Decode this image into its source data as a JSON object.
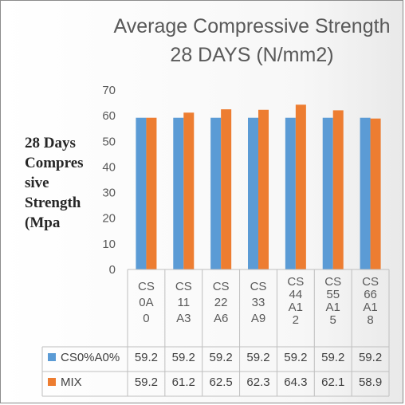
{
  "chart_data": {
    "type": "bar",
    "title_lines": [
      "Average Compressive Strength",
      "28 DAYS (N/mm2)"
    ],
    "ylabel_lines": [
      "28 Days",
      "Compres",
      "sive",
      "Strength",
      "(Mpa"
    ],
    "ylim": [
      0,
      70
    ],
    "yticks": [
      "0",
      "10",
      "20",
      "30",
      "40",
      "50",
      "60",
      "70"
    ],
    "grid": false,
    "legend": "data-table",
    "categories": [
      [
        "CS",
        "0A",
        "0"
      ],
      [
        "CS",
        "11",
        "A3"
      ],
      [
        "CS",
        "22",
        "A6"
      ],
      [
        "CS",
        "33",
        "A9"
      ],
      [
        "CS",
        "44",
        "A1",
        "2"
      ],
      [
        "CS",
        "55",
        "A1",
        "5"
      ],
      [
        "CS",
        "66",
        "A1",
        "8"
      ]
    ],
    "series": [
      {
        "name": "CS0%A0%",
        "color": "#5b9bd5",
        "values": [
          59.2,
          59.2,
          59.2,
          59.2,
          59.2,
          59.2,
          59.2
        ],
        "labels": [
          "59.2",
          "59.2",
          "59.2",
          "59.2",
          "59.2",
          "59.2",
          "59.2"
        ]
      },
      {
        "name": "MIX",
        "color": "#ed7d31",
        "values": [
          59.2,
          61.2,
          62.5,
          62.3,
          64.3,
          62.1,
          58.9
        ],
        "labels": [
          "59.2",
          "61.2",
          "62.5",
          "62.3",
          "64.3",
          "62.1",
          "58.9"
        ]
      }
    ]
  }
}
